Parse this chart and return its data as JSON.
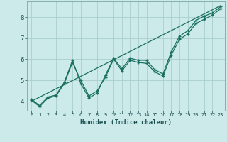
{
  "xlabel": "Humidex (Indice chaleur)",
  "background_color": "#cceaea",
  "grid_color": "#aacece",
  "line_color": "#1a7060",
  "xlim": [
    -0.5,
    23.5
  ],
  "ylim": [
    3.55,
    8.75
  ],
  "x_ticks": [
    0,
    1,
    2,
    3,
    4,
    5,
    6,
    7,
    8,
    9,
    10,
    11,
    12,
    13,
    14,
    15,
    16,
    17,
    18,
    19,
    20,
    21,
    22,
    23
  ],
  "y_ticks": [
    4,
    5,
    6,
    7,
    8
  ],
  "data1_x": [
    0,
    1,
    2,
    3,
    4,
    5,
    6,
    7,
    8,
    9,
    10,
    11,
    12,
    13,
    14,
    15,
    16,
    17,
    18,
    19,
    20,
    21,
    22,
    23
  ],
  "data1_y": [
    4.1,
    3.8,
    4.2,
    4.3,
    4.9,
    5.95,
    4.85,
    4.15,
    4.4,
    5.25,
    6.05,
    5.55,
    6.05,
    5.95,
    5.95,
    5.5,
    5.3,
    6.35,
    7.1,
    7.35,
    7.85,
    8.05,
    8.2,
    8.5
  ],
  "data2_x": [
    0,
    1,
    2,
    3,
    4,
    5,
    6,
    7,
    8,
    9,
    10,
    11,
    12,
    13,
    14,
    15,
    16,
    17,
    18,
    19,
    20,
    21,
    22,
    23
  ],
  "data2_y": [
    4.05,
    3.75,
    4.15,
    4.25,
    4.85,
    5.85,
    5.0,
    4.25,
    4.5,
    5.15,
    6.0,
    5.45,
    5.95,
    5.85,
    5.8,
    5.4,
    5.2,
    6.2,
    6.95,
    7.2,
    7.7,
    7.9,
    8.1,
    8.4
  ],
  "trend_x": [
    0,
    23
  ],
  "trend_y": [
    4.0,
    8.55
  ]
}
